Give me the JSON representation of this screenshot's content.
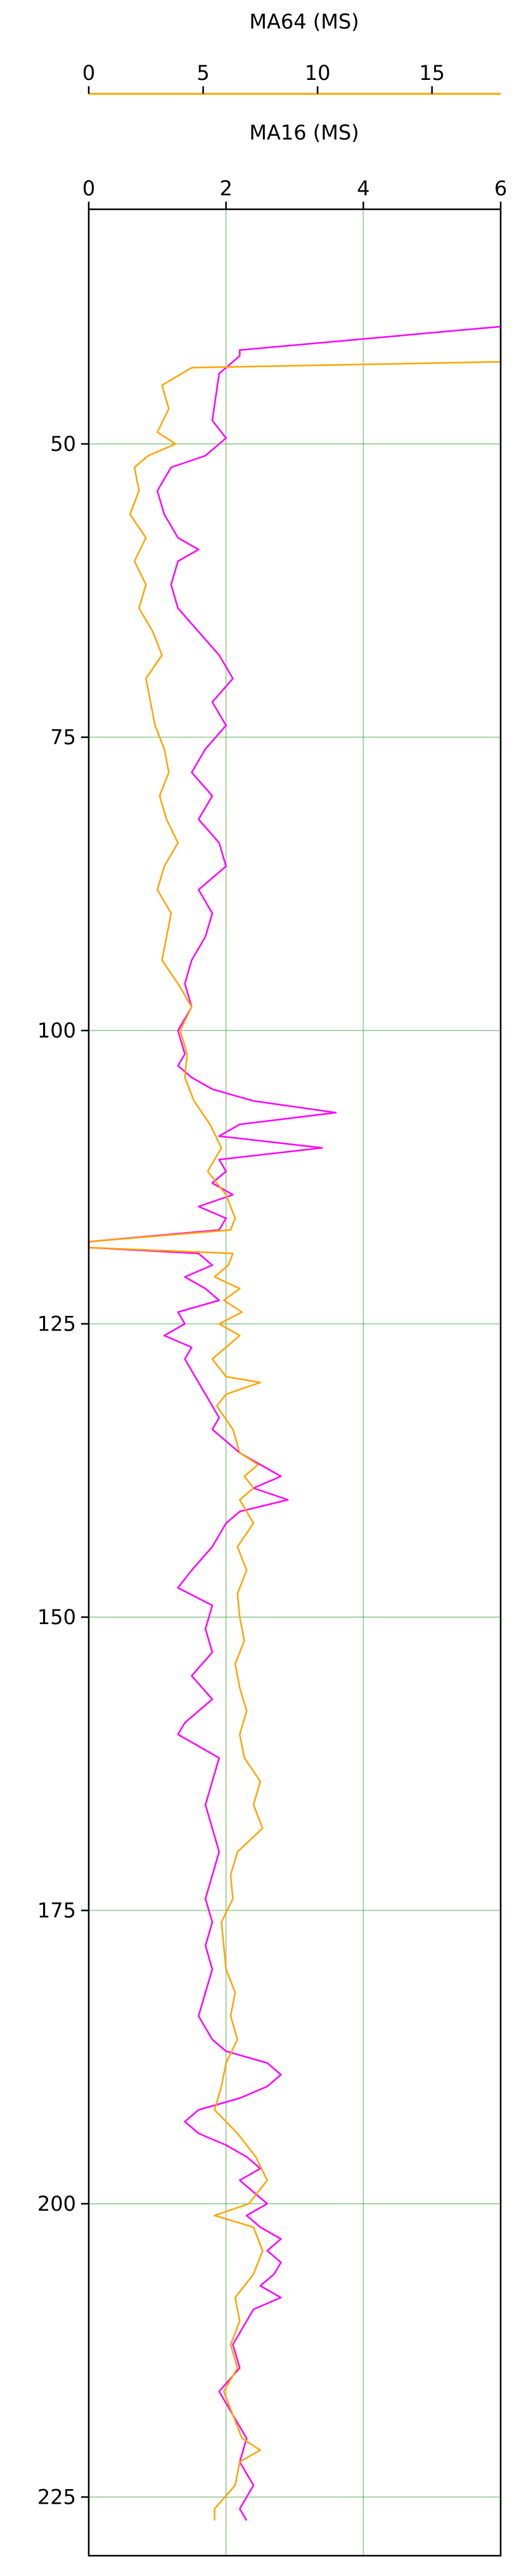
{
  "chart_data": {
    "type": "line",
    "title": "",
    "grid": true,
    "y_axis": {
      "label": "",
      "range": [
        230,
        30
      ],
      "inverted": true,
      "ticks": [
        50,
        75,
        100,
        125,
        150,
        175,
        200,
        225
      ],
      "tick_labels": [
        "50",
        "75",
        "100",
        "125",
        "150",
        "175",
        "200",
        "225"
      ]
    },
    "x_axes": [
      {
        "id": "ma16",
        "label": "MA16 (MS)",
        "range": [
          0,
          6
        ],
        "ticks": [
          0,
          2,
          4,
          6
        ],
        "tick_labels": [
          "0",
          "2",
          "4",
          "6"
        ],
        "color": "#ff00ff"
      },
      {
        "id": "ma64",
        "label": "MA64 (MS)",
        "range": [
          0,
          18
        ],
        "ticks": [
          0,
          5,
          10,
          15
        ],
        "tick_labels": [
          "0",
          "5",
          "10",
          "15"
        ],
        "color": "#ffa500"
      }
    ],
    "grid_color": "#008000",
    "series": [
      {
        "name": "MA16 (MS)",
        "axis": "ma16",
        "color": "#ff00ff",
        "depth": [
          40,
          42,
          42.5,
          44,
          46,
          48,
          49.5,
          51,
          52,
          54,
          56,
          58,
          59,
          60,
          62,
          64,
          66,
          68,
          70,
          72,
          74,
          76,
          78,
          80,
          82,
          84,
          86,
          88,
          90,
          92,
          94,
          96,
          98,
          100,
          102,
          103,
          104,
          105,
          106,
          107,
          108,
          109,
          110,
          111,
          112,
          113,
          114,
          115,
          116,
          117,
          118,
          118.5,
          119,
          120,
          121,
          122,
          123,
          124,
          125,
          126,
          127,
          128,
          129,
          130,
          131,
          132,
          133,
          134,
          135,
          136,
          137,
          138,
          139,
          140,
          141,
          142,
          144,
          146,
          147.5,
          149,
          151,
          153,
          155,
          157,
          159,
          160,
          161,
          162,
          164,
          166,
          168,
          170,
          172,
          174,
          176,
          178,
          180,
          182,
          184,
          186,
          187,
          188,
          189,
          190,
          191,
          192,
          193,
          194,
          195,
          196,
          197,
          198,
          199,
          200,
          201,
          202,
          203,
          204,
          205,
          206,
          207,
          208,
          209,
          210,
          212,
          214,
          216,
          218,
          220,
          222,
          224,
          225,
          226,
          227
        ],
        "values": [
          6.0,
          2.2,
          2.2,
          1.9,
          1.85,
          1.8,
          2.0,
          1.7,
          1.2,
          1.0,
          1.1,
          1.3,
          1.6,
          1.3,
          1.2,
          1.3,
          1.6,
          1.9,
          2.1,
          1.8,
          2.0,
          1.7,
          1.5,
          1.8,
          1.6,
          1.9,
          2.0,
          1.6,
          1.8,
          1.7,
          1.5,
          1.4,
          1.5,
          1.3,
          1.4,
          1.3,
          1.5,
          1.8,
          2.4,
          3.6,
          2.2,
          1.9,
          3.4,
          1.9,
          2.0,
          1.8,
          2.1,
          1.6,
          2.0,
          1.9,
          0.0,
          0.0,
          1.6,
          1.8,
          1.4,
          1.7,
          1.9,
          1.3,
          1.4,
          1.1,
          1.5,
          1.4,
          1.5,
          1.6,
          1.7,
          1.8,
          1.9,
          1.8,
          2.0,
          2.2,
          2.5,
          2.8,
          2.4,
          2.9,
          2.2,
          2.0,
          1.8,
          1.5,
          1.3,
          1.8,
          1.7,
          1.8,
          1.5,
          1.8,
          1.4,
          1.3,
          1.6,
          1.9,
          1.8,
          1.7,
          1.8,
          1.9,
          1.8,
          1.7,
          1.8,
          1.7,
          1.8,
          1.7,
          1.6,
          1.8,
          2.0,
          2.6,
          2.8,
          2.6,
          2.2,
          1.6,
          1.4,
          1.6,
          2.0,
          2.3,
          2.5,
          2.2,
          2.4,
          2.6,
          2.3,
          2.5,
          2.8,
          2.6,
          2.8,
          2.7,
          2.5,
          2.8,
          2.4,
          2.3,
          2.1,
          2.2,
          1.9,
          2.1,
          2.3,
          2.2,
          2.4,
          2.3,
          2.2,
          2.3
        ]
      },
      {
        "name": "MA64 (MS)",
        "axis": "ma64",
        "color": "#ffa500",
        "depth": [
          40,
          43,
          43.5,
          45,
          47,
          49,
          50,
          51,
          52,
          54,
          56,
          58,
          60,
          62,
          64,
          66,
          68,
          70,
          72,
          74,
          76,
          78,
          80,
          82,
          84,
          86,
          88,
          90,
          92,
          94,
          96,
          98,
          100,
          102,
          104,
          106,
          108,
          110,
          112,
          114,
          116,
          117,
          118,
          118.5,
          119,
          120,
          121,
          122,
          123,
          124,
          125,
          126,
          128,
          129.5,
          130,
          131,
          132,
          134,
          136,
          137,
          138,
          139,
          140,
          142,
          144,
          146,
          148,
          150,
          152,
          154,
          156,
          158,
          160,
          162,
          164,
          166,
          168,
          170,
          172,
          174,
          176,
          178,
          180,
          182,
          184,
          186,
          188,
          190,
          192,
          194,
          196,
          198,
          200,
          201,
          202,
          204,
          206,
          208,
          210,
          212,
          214,
          216,
          218,
          220,
          221,
          222,
          224,
          226,
          227
        ],
        "values": [
          18.0,
          18.0,
          4.5,
          3.2,
          3.5,
          3.0,
          3.8,
          2.6,
          2.0,
          2.2,
          1.8,
          2.5,
          2.0,
          2.5,
          2.2,
          2.8,
          3.2,
          2.5,
          2.7,
          2.9,
          3.3,
          3.5,
          3.1,
          3.4,
          3.9,
          3.3,
          3.0,
          3.6,
          3.4,
          3.2,
          3.9,
          4.5,
          4.0,
          4.3,
          4.2,
          4.6,
          5.3,
          5.8,
          5.2,
          6.0,
          6.4,
          6.2,
          0.0,
          0.0,
          6.3,
          6.1,
          5.5,
          6.6,
          5.9,
          6.7,
          5.7,
          6.6,
          5.4,
          6.0,
          7.5,
          6.0,
          5.6,
          6.3,
          6.6,
          7.4,
          6.8,
          7.2,
          6.6,
          7.2,
          6.5,
          6.9,
          6.5,
          6.6,
          6.8,
          6.4,
          6.6,
          6.9,
          6.6,
          6.8,
          7.5,
          7.2,
          7.6,
          6.5,
          6.2,
          6.3,
          5.8,
          5.9,
          6.0,
          6.4,
          6.2,
          6.5,
          6.0,
          5.8,
          5.5,
          6.5,
          7.3,
          7.8,
          7.0,
          5.5,
          7.2,
          7.6,
          7.2,
          6.4,
          6.6,
          6.2,
          6.5,
          5.9,
          6.3,
          6.7,
          7.5,
          6.6,
          6.4,
          5.5,
          5.5
        ]
      }
    ]
  }
}
